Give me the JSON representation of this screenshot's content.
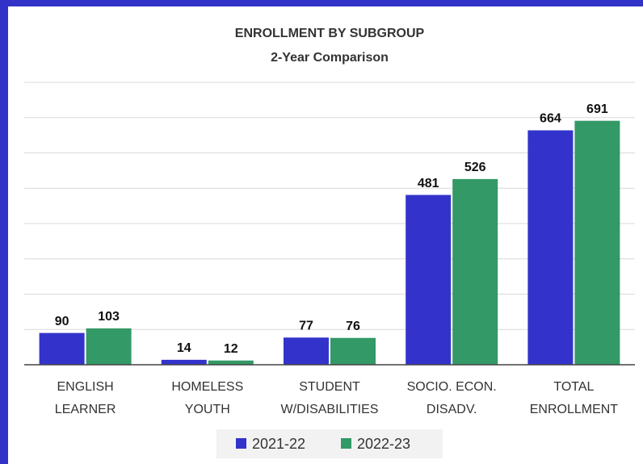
{
  "chart_data": {
    "type": "bar",
    "title": "ENROLLMENT BY SUBGROUP",
    "subtitle": "2-Year Comparison",
    "categories": [
      "ENGLISH\nLEARNER",
      "HOMELESS\nYOUTH",
      "STUDENT\nW/DISABILITIES",
      "SOCIO. ECON.\nDISADV.",
      "TOTAL\nENROLLMENT"
    ],
    "series": [
      {
        "name": "2021-22",
        "color": "#3333cc",
        "values": [
          90,
          14,
          77,
          481,
          664
        ]
      },
      {
        "name": "2022-23",
        "color": "#339966",
        "values": [
          103,
          12,
          76,
          526,
          691
        ]
      }
    ],
    "ylim": [
      0,
      800
    ],
    "yticks": [
      0,
      100,
      200,
      300,
      400,
      500,
      600,
      700,
      800
    ],
    "grid": true,
    "tick_labels": false,
    "legend": "bottom"
  }
}
